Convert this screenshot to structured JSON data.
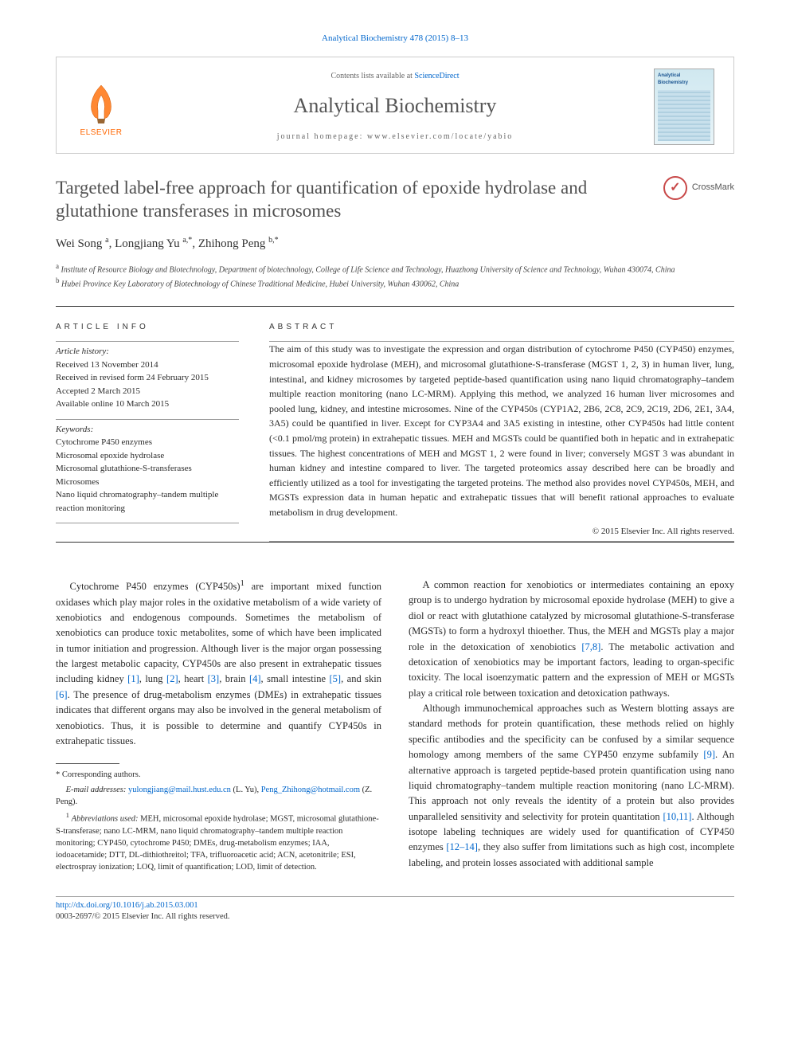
{
  "citation": {
    "journal_abbrev": "Analytical Biochemistry",
    "volume_pages": "478 (2015) 8–13"
  },
  "header": {
    "contents_prefix": "Contents lists available at ",
    "contents_link": "ScienceDirect",
    "journal_name": "Analytical Biochemistry",
    "homepage_prefix": "journal homepage: ",
    "homepage_url": "www.elsevier.com/locate/yabio",
    "publisher_label": "ELSEVIER",
    "cover_title": "Analytical Biochemistry"
  },
  "crossmark_label": "CrossMark",
  "title": "Targeted label-free approach for quantification of epoxide hydrolase and glutathione transferases in microsomes",
  "authors_html": "Wei Song <sup>a</sup>, Longjiang Yu <sup>a,*</sup>, Zhihong Peng <sup>b,*</sup>",
  "affiliations": [
    {
      "key": "a",
      "text": "Institute of Resource Biology and Biotechnology, Department of biotechnology, College of Life Science and Technology, Huazhong University of Science and Technology, Wuhan 430074, China"
    },
    {
      "key": "b",
      "text": "Hubei Province Key Laboratory of Biotechnology of Chinese Traditional Medicine, Hubei University, Wuhan 430062, China"
    }
  ],
  "article_info_heading": "ARTICLE INFO",
  "abstract_heading": "ABSTRACT",
  "history": {
    "label": "Article history:",
    "lines": [
      "Received 13 November 2014",
      "Received in revised form 24 February 2015",
      "Accepted 2 March 2015",
      "Available online 10 March 2015"
    ]
  },
  "keywords": {
    "label": "Keywords:",
    "lines": [
      "Cytochrome P450 enzymes",
      "Microsomal epoxide hydrolase",
      "Microsomal glutathione-S-transferases",
      "Microsomes",
      "Nano liquid chromatography–tandem multiple reaction monitoring"
    ]
  },
  "abstract": "The aim of this study was to investigate the expression and organ distribution of cytochrome P450 (CYP450) enzymes, microsomal epoxide hydrolase (MEH), and microsomal glutathione-S-transferase (MGST 1, 2, 3) in human liver, lung, intestinal, and kidney microsomes by targeted peptide-based quantification using nano liquid chromatography–tandem multiple reaction monitoring (nano LC-MRM). Applying this method, we analyzed 16 human liver microsomes and pooled lung, kidney, and intestine microsomes. Nine of the CYP450s (CYP1A2, 2B6, 2C8, 2C9, 2C19, 2D6, 2E1, 3A4, 3A5) could be quantified in liver. Except for CYP3A4 and 3A5 existing in intestine, other CYP450s had little content (<0.1 pmol/mg protein) in extrahepatic tissues. MEH and MGSTs could be quantified both in hepatic and in extrahepatic tissues. The highest concentrations of MEH and MGST 1, 2 were found in liver; conversely MGST 3 was abundant in human kidney and intestine compared to liver. The targeted proteomics assay described here can be broadly and efficiently utilized as a tool for investigating the targeted proteins. The method also provides novel CYP450s, MEH, and MGSTs expression data in human hepatic and extrahepatic tissues that will benefit rational approaches to evaluate metabolism in drug development.",
  "copyright": "© 2015 Elsevier Inc. All rights reserved.",
  "body": {
    "p1_a": "Cytochrome P450 enzymes (CYP450s)",
    "p1_sup": "1",
    "p1_b": " are important mixed function oxidases which play major roles in the oxidative metabolism of a wide variety of xenobiotics and endogenous compounds. Sometimes the metabolism of xenobiotics can produce toxic metabolites, some of which have been implicated in tumor initiation and progression. Although liver is the major organ possessing the largest metabolic capacity, CYP450s are also present in extrahepatic tissues including kidney ",
    "ref1": "[1]",
    "p1_c": ", lung ",
    "ref2": "[2]",
    "p1_d": ", heart ",
    "ref3": "[3]",
    "p1_e": ", brain ",
    "ref4": "[4]",
    "p1_f": ", small intestine ",
    "ref5": "[5]",
    "p1_g": ", and skin ",
    "ref6": "[6]",
    "p1_h": ". The presence of drug-metabolism enzymes (DMEs) in extrahepatic tissues indicates that different organs may also be involved in the general metabolism of xenobiotics. Thus, it is possible to determine and quantify CYP450s in extrahepatic tissues.",
    "p2_a": "A common reaction for xenobiotics or intermediates containing an epoxy group is to undergo hydration by microsomal epoxide hydrolase (MEH) to give a diol or react with glutathione catalyzed by microsomal glutathione-S-transferase (MGSTs) to form a hydroxyl thioether. Thus, the MEH and MGSTs play a major role in the detoxication of xenobiotics ",
    "ref78": "[7,8]",
    "p2_b": ". The metabolic activation and detoxication of xenobiotics may be important factors, leading to organ-specific toxicity. The local isoenzymatic pattern and the expression of MEH or MGSTs play a critical role between toxication and detoxication pathways.",
    "p3_a": "Although immunochemical approaches such as Western blotting assays are standard methods for protein quantification, these methods relied on highly specific antibodies and the specificity can be confused by a similar sequence homology among members of the same CYP450 enzyme subfamily ",
    "ref9": "[9]",
    "p3_b": ". An alternative approach is targeted peptide-based protein quantification using nano liquid chromatography–tandem multiple reaction monitoring (nano LC-MRM). This approach not only reveals the identity of a protein but also provides unparalleled sensitivity and selectivity for protein quantitation ",
    "ref1011": "[10,11]",
    "p3_c": ". Although isotope labeling techniques are widely used for quantification of CYP450 enzymes ",
    "ref1214": "[12–14]",
    "p3_d": ", they also suffer from limitations such as high cost, incomplete labeling, and protein losses associated with additional sample"
  },
  "footnotes": {
    "corresponding": "* Corresponding authors.",
    "email_label": "E-mail addresses:",
    "email1": "yulongjiang@mail.hust.edu.cn",
    "email1_person": " (L. Yu), ",
    "email2": "Peng_Zhihong@hotmail.com",
    "email2_person": " (Z. Peng).",
    "abbrev_label": "Abbreviations used:",
    "abbrev_sup": "1",
    "abbrev_text": " MEH, microsomal epoxide hydrolase; MGST, microsomal glutathione-S-transferase; nano LC-MRM, nano liquid chromatography–tandem multiple reaction monitoring; CYP450, cytochrome P450; DMEs, drug-metabolism enzymes; IAA, iodoacetamide; DTT, DL-dithiothreitol; TFA, trifluoroacetic acid; ACN, acetonitrile; ESI, electrospray ionization; LOQ, limit of quantification; LOD, limit of detection."
  },
  "doi": {
    "url": "http://dx.doi.org/10.1016/j.ab.2015.03.001",
    "issn_line": "0003-2697/© 2015 Elsevier Inc. All rights reserved."
  },
  "colors": {
    "link": "#0066cc",
    "elsevier_orange": "#ff6600",
    "rule": "#999999",
    "text": "#2a2a2a"
  }
}
